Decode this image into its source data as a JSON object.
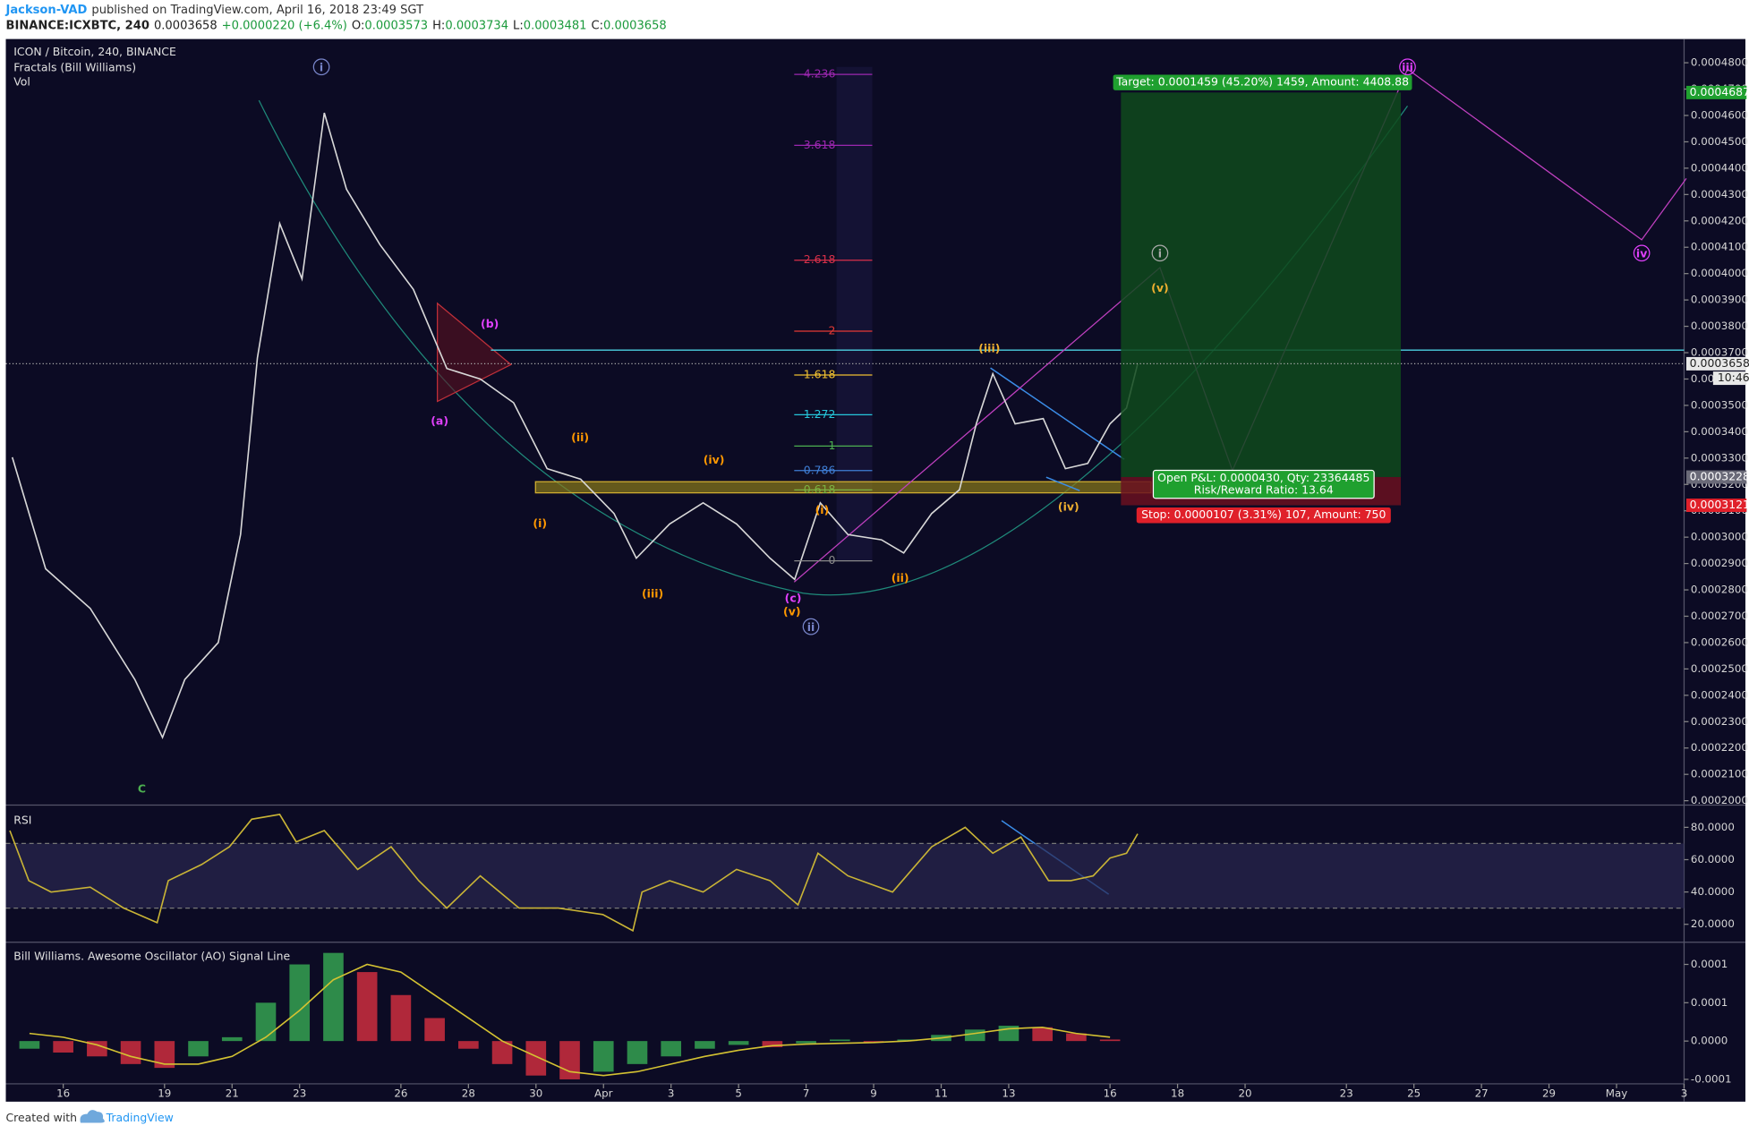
{
  "header": {
    "author": "Jackson-VAD",
    "published": "published on TradingView.com, April 16, 2018 23:49 SGT",
    "symbol": "BINANCE:ICXBTC, 240",
    "last": "0.0003658",
    "change": "+0.0000220 (+6.4%)",
    "open_label": "O:",
    "open": "0.0003573",
    "high_label": "H:",
    "high": "0.0003734",
    "low_label": "L:",
    "low": "0.0003481",
    "close_label": "C:",
    "close": "0.0003658"
  },
  "footer": {
    "created": "Created with",
    "brand": "TradingView"
  },
  "chart_data": [
    {
      "type": "line",
      "title": "ICON / Bitcoin, 240, BINANCE",
      "indicators": [
        "Fractals (Bill Williams)",
        "Vol"
      ],
      "color": "#d8d8d8",
      "x": [
        14.49,
        15.48,
        16.8,
        18.12,
        18.94,
        19.6,
        20.59,
        21.25,
        21.75,
        22.41,
        23.07,
        23.73,
        24.39,
        25.38,
        26.37,
        27.36,
        28.35,
        29.34,
        30.33,
        31.32,
        32.31,
        32.97,
        33.96,
        34.95,
        35.94,
        36.93,
        37.66,
        38.42,
        39.24,
        40.23,
        40.89,
        41.72,
        42.54,
        43.04,
        43.53,
        44.19,
        45.02,
        45.68,
        46.34,
        47.0,
        47.49,
        47.82
      ],
      "values": [
        0.0003303,
        0.000288,
        0.000273,
        0.000246,
        0.000224,
        0.000246,
        0.00026,
        0.000301,
        0.000368,
        0.000419,
        0.000398,
        0.000461,
        0.000432,
        0.000411,
        0.000394,
        0.000364,
        0.00036,
        0.000351,
        0.000326,
        0.000322,
        0.000309,
        0.000292,
        0.000305,
        0.000313,
        0.000305,
        0.000292,
        0.000284,
        0.000313,
        0.000301,
        0.000299,
        0.000294,
        0.000309,
        0.000318,
        0.000343,
        0.000362,
        0.000343,
        0.000345,
        0.000326,
        0.000328,
        0.000343,
        0.000349,
        0.0003658
      ],
      "xlim": [
        14.3,
        64
      ],
      "xticks": [
        16,
        19,
        21,
        23,
        26,
        28,
        30,
        {
          "value": 32,
          "label": "Apr"
        },
        {
          "value": 34,
          "label": "3"
        },
        {
          "value": 36,
          "label": "5"
        },
        {
          "value": 38,
          "label": "7"
        },
        {
          "value": 40,
          "label": "9"
        },
        {
          "value": 42,
          "label": "11"
        },
        {
          "value": 44,
          "label": "13"
        },
        {
          "value": 47,
          "label": "16"
        },
        {
          "value": 49,
          "label": "18"
        },
        {
          "value": 51,
          "label": "20"
        },
        {
          "value": 54,
          "label": "23"
        },
        {
          "value": 56,
          "label": "25"
        },
        {
          "value": 58,
          "label": "27"
        },
        {
          "value": 60,
          "label": "29"
        },
        {
          "value": 62,
          "label": "May"
        },
        {
          "value": 64,
          "label": "3"
        }
      ],
      "ylim": [
        0.0001992,
        0.000489
      ],
      "yticks": [
        {
          "value": 0.0002,
          "label": "0.0002000"
        },
        {
          "value": 0.00021,
          "label": "0.0002100"
        },
        {
          "value": 0.00022,
          "label": "0.0002200"
        },
        {
          "value": 0.00023,
          "label": "0.0002300"
        },
        {
          "value": 0.00024,
          "label": "0.0002400"
        },
        {
          "value": 0.00025,
          "label": "0.0002500"
        },
        {
          "value": 0.00026,
          "label": "0.0002600"
        },
        {
          "value": 0.00027,
          "label": "0.0002700"
        },
        {
          "value": 0.00028,
          "label": "0.0002800"
        },
        {
          "value": 0.00029,
          "label": "0.0002900"
        },
        {
          "value": 0.0003,
          "label": "0.0003000"
        },
        {
          "value": 0.00031,
          "label": "0.0003100"
        },
        {
          "value": 0.00032,
          "label": "0.0003200"
        },
        {
          "value": 0.00033,
          "label": "0.0003300"
        },
        {
          "value": 0.00034,
          "label": "0.0003400"
        },
        {
          "value": 0.00035,
          "label": "0.0003500"
        },
        {
          "value": 0.00036,
          "label": "0.0003600"
        },
        {
          "value": 0.00037,
          "label": "0.0003700"
        },
        {
          "value": 0.00038,
          "label": "0.0003800"
        },
        {
          "value": 0.00039,
          "label": "0.0003900"
        },
        {
          "value": 0.0004,
          "label": "0.0004000"
        },
        {
          "value": 0.00041,
          "label": "0.0004100"
        },
        {
          "value": 0.00042,
          "label": "0.0004200"
        },
        {
          "value": 0.00043,
          "label": "0.0004300"
        },
        {
          "value": 0.00044,
          "label": "0.0004400"
        },
        {
          "value": 0.00045,
          "label": "0.0004500"
        },
        {
          "value": 0.00046,
          "label": "0.0004600"
        },
        {
          "value": 0.00047,
          "label": "0.0004700"
        },
        {
          "value": 0.00048,
          "label": "0.0004800"
        }
      ],
      "price_tags": [
        {
          "value": 0.0004687,
          "label": "0.0004687"
        },
        {
          "value": 0.0003658,
          "label": "0.0003658"
        },
        {
          "value": 0.0003228,
          "label": "0.0003228"
        },
        {
          "value": 0.0003121,
          "label": "0.0003121"
        }
      ],
      "countdown": "10:46",
      "fib_levels": [
        4.236,
        3.618,
        2.618,
        2,
        1.618,
        1.272,
        1,
        0.786,
        0.618,
        0
      ],
      "position": {
        "target": "Target: 0.0001459 (45.20%) 1459, Amount: 4408.88",
        "pnl": "Open P&L: 0.0000430, Qty: 23364485",
        "ratio": "Risk/Reward Ratio: 13.64",
        "stop": "Stop: 0.0000107 (3.31%) 107, Amount: 750"
      },
      "annotations": [
        "i",
        "(b)",
        "(a)",
        "(ii)",
        "(iv)",
        "(i)",
        "(iii)",
        "(c)",
        "(v)",
        "ii",
        "(i)",
        "(ii)",
        "(iii)",
        "(iv)",
        "(v)",
        "i",
        "iii",
        "iv",
        "C"
      ]
    },
    {
      "type": "line",
      "title": "RSI",
      "color": "#c9b436",
      "x": [
        14.42,
        14.98,
        15.64,
        16.8,
        17.79,
        18.78,
        19.11,
        20.1,
        20.92,
        21.58,
        22.41,
        22.9,
        23.73,
        24.72,
        25.71,
        26.53,
        27.36,
        28.35,
        29.5,
        30.66,
        31.98,
        32.87,
        33.14,
        33.96,
        34.95,
        35.94,
        36.93,
        37.76,
        38.35,
        39.24,
        40.56,
        41.72,
        42.71,
        43.53,
        44.36,
        45.18,
        45.84,
        46.5,
        47.0,
        47.49,
        47.82
      ],
      "values": [
        78,
        47,
        40,
        43,
        30,
        21,
        47,
        57,
        68,
        85,
        88,
        71,
        78,
        54,
        68,
        47,
        30,
        50,
        30,
        30,
        26,
        16,
        40,
        47,
        40,
        54,
        47,
        32,
        64,
        50,
        40,
        68,
        80,
        64,
        74,
        47,
        47,
        50,
        61,
        64,
        76
      ],
      "band": [
        30,
        70
      ],
      "ylim": [
        10.3,
        92.4
      ],
      "yticks": [
        {
          "value": 20,
          "label": "20.0000"
        },
        {
          "value": 40,
          "label": "40.0000"
        },
        {
          "value": 60,
          "label": "60.0000"
        },
        {
          "value": 80,
          "label": "80.0000"
        }
      ]
    },
    {
      "type": "bar",
      "title": "Bill Williams. Awesome Oscillator (AO) Signal Line",
      "color": "#d4c232",
      "x": [
        15,
        16,
        17,
        18,
        19,
        20,
        21,
        22,
        23,
        24,
        25,
        26,
        27,
        28,
        29,
        30,
        31,
        32,
        33,
        34,
        35,
        36,
        37,
        38,
        39,
        40,
        41,
        42,
        43,
        44,
        45,
        46,
        47
      ],
      "values": [
        -1e-05,
        -1.5e-05,
        -2e-05,
        -3e-05,
        -3.5e-05,
        -2e-05,
        5e-06,
        5e-05,
        0.0001,
        0.000115,
        9e-05,
        6e-05,
        3e-05,
        -1e-05,
        -3e-05,
        -4.5e-05,
        -5e-05,
        -4e-05,
        -3e-05,
        -2e-05,
        -1e-05,
        -5e-06,
        -8e-06,
        -3e-06,
        2e-06,
        -2e-06,
        2e-06,
        8e-06,
        1.5e-05,
        2e-05,
        1.8e-05,
        1e-05,
        2e-06
      ],
      "signal": [
        1e-05,
        5e-06,
        -5e-06,
        -2e-05,
        -3e-05,
        -3e-05,
        -2e-05,
        5e-06,
        4e-05,
        8e-05,
        0.0001,
        9e-05,
        6e-05,
        3e-05,
        0,
        -2e-05,
        -4e-05,
        -4.5e-05,
        -4e-05,
        -3e-05,
        -2e-05,
        -1.2e-05,
        -6e-06,
        -4e-06,
        -3e-06,
        -2e-06,
        0,
        4e-06,
        1e-05,
        1.6e-05,
        1.8e-05,
        1e-05,
        5e-06
      ],
      "ylim": [
        -5.58e-05,
        0.0001275
      ],
      "yticks": [
        0.0001,
        {
          "value": 5e-05,
          "label": "0.0001"
        },
        {
          "value": 0,
          "label": "0.0000"
        },
        {
          "value": -5e-05,
          "label": "-0.0001"
        }
      ]
    }
  ]
}
